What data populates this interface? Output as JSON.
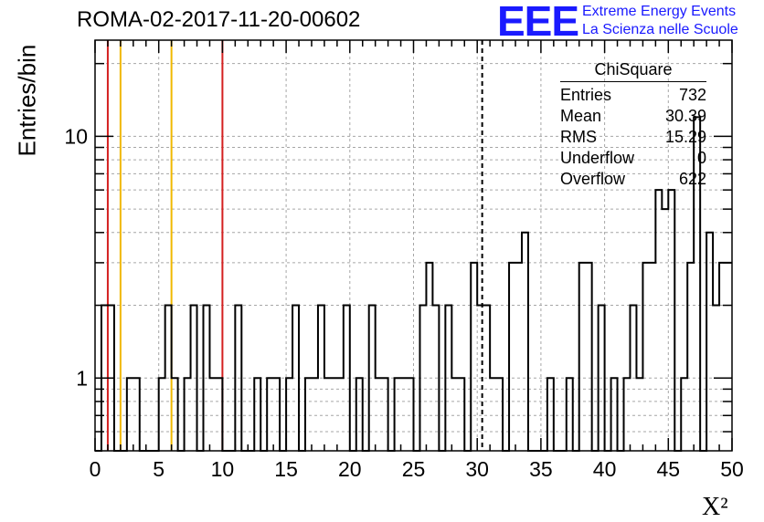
{
  "header": {
    "title": "ROMA-02-2017-11-20-00602",
    "logo_text": "EEE",
    "logo_line1": "Extreme Energy Events",
    "logo_line2": "La Scienza nelle Scuole"
  },
  "stats_box": {
    "title": "ChiSquare",
    "rows": [
      {
        "label": "Entries",
        "value": "732"
      },
      {
        "label": "Mean",
        "value": "30.39"
      },
      {
        "label": "RMS",
        "value": "15.29"
      },
      {
        "label": "Underflow",
        "value": "0"
      },
      {
        "label": "Overflow",
        "value": "622"
      }
    ]
  },
  "chart_data": {
    "type": "histogram",
    "title": "ROMA-02-2017-11-20-00602",
    "xlabel": "X²",
    "ylabel": "Entries/bin",
    "xlim": [
      0,
      50
    ],
    "ylim": [
      0.5,
      25
    ],
    "y_scale": "log",
    "grid": true,
    "bin_width": 0.5,
    "x_ticks": [
      "0",
      "5",
      "10",
      "15",
      "20",
      "25",
      "30",
      "35",
      "40",
      "45",
      "50"
    ],
    "y_ticks": [
      {
        "value": 1,
        "label": "1"
      },
      {
        "value": 10,
        "label": "10"
      }
    ],
    "bins": [
      {
        "x": 0.5,
        "y": 2
      },
      {
        "x": 1.0,
        "y": 2
      },
      {
        "x": 2.5,
        "y": 1
      },
      {
        "x": 3.0,
        "y": 1
      },
      {
        "x": 5.0,
        "y": 1
      },
      {
        "x": 5.5,
        "y": 2
      },
      {
        "x": 6.0,
        "y": 1
      },
      {
        "x": 7.0,
        "y": 1
      },
      {
        "x": 7.5,
        "y": 2
      },
      {
        "x": 8.5,
        "y": 2
      },
      {
        "x": 9.0,
        "y": 1
      },
      {
        "x": 9.5,
        "y": 1
      },
      {
        "x": 11.0,
        "y": 2
      },
      {
        "x": 12.5,
        "y": 1
      },
      {
        "x": 13.5,
        "y": 1
      },
      {
        "x": 14.0,
        "y": 1
      },
      {
        "x": 15.0,
        "y": 1
      },
      {
        "x": 15.5,
        "y": 2
      },
      {
        "x": 16.5,
        "y": 1
      },
      {
        "x": 17.0,
        "y": 1
      },
      {
        "x": 17.5,
        "y": 2
      },
      {
        "x": 18.0,
        "y": 1
      },
      {
        "x": 18.5,
        "y": 1
      },
      {
        "x": 19.0,
        "y": 1
      },
      {
        "x": 19.5,
        "y": 2
      },
      {
        "x": 20.5,
        "y": 1
      },
      {
        "x": 21.5,
        "y": 2
      },
      {
        "x": 22.0,
        "y": 1
      },
      {
        "x": 22.5,
        "y": 1
      },
      {
        "x": 23.5,
        "y": 1
      },
      {
        "x": 24.0,
        "y": 1
      },
      {
        "x": 24.5,
        "y": 1
      },
      {
        "x": 25.5,
        "y": 2
      },
      {
        "x": 26.0,
        "y": 3
      },
      {
        "x": 26.5,
        "y": 2
      },
      {
        "x": 27.5,
        "y": 2
      },
      {
        "x": 28.0,
        "y": 1
      },
      {
        "x": 28.5,
        "y": 1
      },
      {
        "x": 29.5,
        "y": 3
      },
      {
        "x": 30.0,
        "y": 2
      },
      {
        "x": 30.5,
        "y": 2
      },
      {
        "x": 31.0,
        "y": 1
      },
      {
        "x": 31.5,
        "y": 1
      },
      {
        "x": 32.5,
        "y": 3
      },
      {
        "x": 33.0,
        "y": 3
      },
      {
        "x": 33.5,
        "y": 4
      },
      {
        "x": 35.5,
        "y": 1
      },
      {
        "x": 37.0,
        "y": 1
      },
      {
        "x": 38.0,
        "y": 3
      },
      {
        "x": 38.5,
        "y": 3
      },
      {
        "x": 39.5,
        "y": 2
      },
      {
        "x": 40.5,
        "y": 1
      },
      {
        "x": 41.5,
        "y": 1
      },
      {
        "x": 42.0,
        "y": 2
      },
      {
        "x": 42.5,
        "y": 1
      },
      {
        "x": 43.0,
        "y": 3
      },
      {
        "x": 43.5,
        "y": 3
      },
      {
        "x": 44.0,
        "y": 6
      },
      {
        "x": 44.5,
        "y": 5
      },
      {
        "x": 45.0,
        "y": 6
      },
      {
        "x": 46.0,
        "y": 1
      },
      {
        "x": 46.5,
        "y": 3
      },
      {
        "x": 47.0,
        "y": 12
      },
      {
        "x": 48.0,
        "y": 4
      },
      {
        "x": 48.5,
        "y": 2
      },
      {
        "x": 49.0,
        "y": 3
      },
      {
        "x": 49.5,
        "y": 3
      }
    ],
    "vertical_lines": [
      {
        "x": 1.0,
        "color": "#d42020",
        "style": "solid"
      },
      {
        "x": 2.0,
        "color": "#f0b800",
        "style": "solid"
      },
      {
        "x": 6.0,
        "color": "#f0b800",
        "style": "solid"
      },
      {
        "x": 10.0,
        "color": "#d42020",
        "style": "solid"
      },
      {
        "x": 30.39,
        "color": "#000000",
        "style": "dashed"
      }
    ]
  },
  "colors": {
    "logo": "#1a1aff",
    "grid": "#a6a6a6",
    "histogram": "#000000"
  }
}
